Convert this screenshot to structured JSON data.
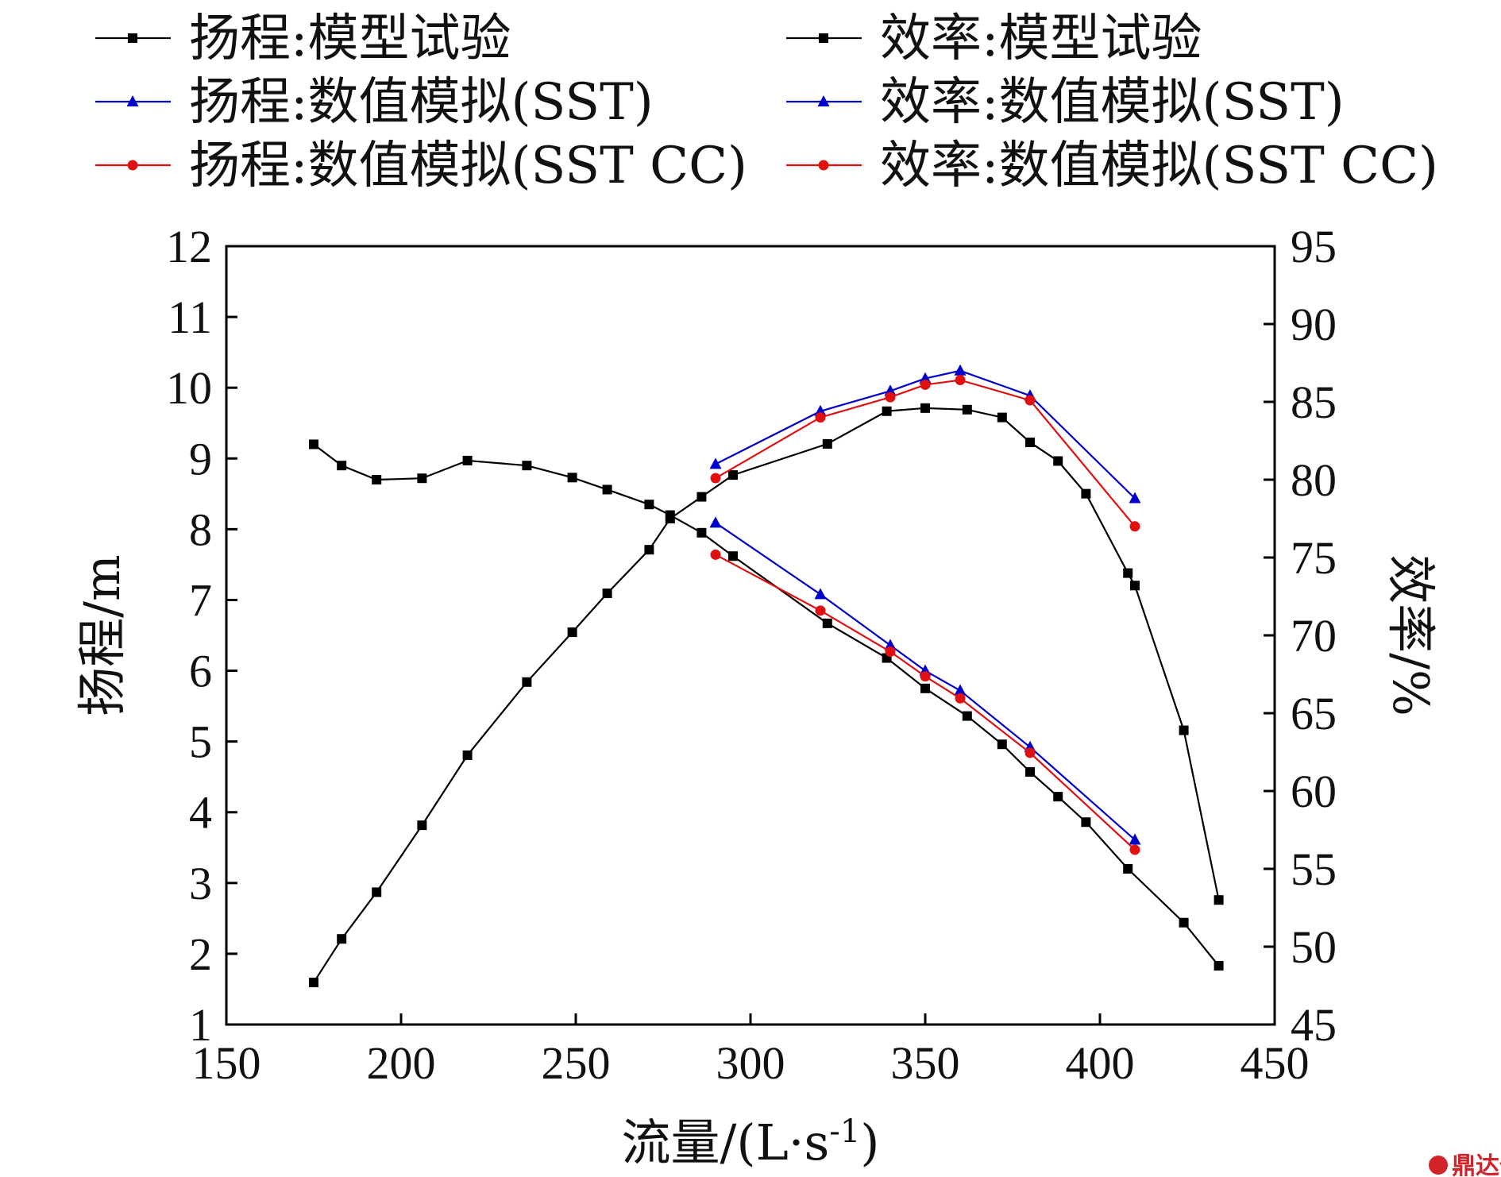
{
  "watermark": {
    "label": "鼎达信"
  },
  "chart_data": {
    "type": "line",
    "xlabel": "流量/(L·s",
    "xlabel_sup": "-1",
    "xlabel_close": ")",
    "ylabel_left": "扬程/m",
    "ylabel_right": "效率/%",
    "xlim": [
      150,
      450
    ],
    "ylim_left": [
      1,
      12
    ],
    "ylim_right": [
      45,
      95
    ],
    "x_ticks": [
      150,
      200,
      250,
      300,
      350,
      400,
      450
    ],
    "y_left_ticks": [
      1,
      2,
      3,
      4,
      5,
      6,
      7,
      8,
      9,
      10,
      11,
      12
    ],
    "y_right_ticks": [
      45,
      50,
      55,
      60,
      65,
      70,
      75,
      80,
      85,
      90,
      95
    ],
    "grid": false,
    "legend_position": "top",
    "series": [
      {
        "name": "扬程:模型试验",
        "axis": "left",
        "marker": "square",
        "color": "#000000",
        "x": [
          175,
          183,
          193,
          206,
          219,
          236,
          249,
          259,
          271,
          277,
          286,
          295,
          322,
          339,
          350,
          362,
          372,
          380,
          388,
          396,
          408,
          424,
          434
        ],
        "y": [
          9.2,
          8.9,
          8.7,
          8.72,
          8.97,
          8.9,
          8.73,
          8.56,
          8.35,
          8.2,
          7.95,
          7.62,
          6.67,
          6.18,
          5.75,
          5.36,
          4.96,
          4.57,
          4.22,
          3.86,
          3.2,
          2.44,
          1.83
        ]
      },
      {
        "name": "扬程:数值模拟(SST)",
        "axis": "left",
        "marker": "triangle",
        "color": "#0000cc",
        "x": [
          290,
          320,
          340,
          350,
          360,
          380,
          410
        ],
        "y": [
          8.09,
          7.08,
          6.36,
          6.0,
          5.72,
          4.92,
          3.61
        ]
      },
      {
        "name": "扬程:数值模拟(SST CC)",
        "axis": "left",
        "marker": "circle",
        "color": "#e01010",
        "x": [
          290,
          320,
          340,
          350,
          360,
          380,
          410
        ],
        "y": [
          7.64,
          6.85,
          6.27,
          5.92,
          5.61,
          4.84,
          3.47
        ]
      },
      {
        "name": "效率:模型试验",
        "axis": "right",
        "marker": "square",
        "color": "#000000",
        "x": [
          175,
          183,
          193,
          206,
          219,
          236,
          249,
          259,
          271,
          277,
          286,
          295,
          322,
          339,
          350,
          362,
          372,
          380,
          388,
          396,
          408,
          410,
          424,
          434
        ],
        "y": [
          47.7,
          50.5,
          53.5,
          57.8,
          62.3,
          67.0,
          70.2,
          72.7,
          75.5,
          77.5,
          78.9,
          80.3,
          82.3,
          84.4,
          84.6,
          84.5,
          84.0,
          82.4,
          81.2,
          79.1,
          74.0,
          73.2,
          63.9,
          53.0
        ]
      },
      {
        "name": "效率:数值模拟(SST)",
        "axis": "right",
        "marker": "triangle",
        "color": "#0000cc",
        "x": [
          290,
          320,
          340,
          350,
          360,
          380,
          410
        ],
        "y": [
          81.0,
          84.4,
          85.7,
          86.5,
          87.0,
          85.4,
          78.8
        ]
      },
      {
        "name": "效率:数值模拟(SST CC)",
        "axis": "right",
        "marker": "circle",
        "color": "#e01010",
        "x": [
          290,
          320,
          340,
          350,
          360,
          380,
          410
        ],
        "y": [
          80.1,
          84.0,
          85.3,
          86.1,
          86.4,
          85.1,
          77.0
        ]
      }
    ]
  }
}
